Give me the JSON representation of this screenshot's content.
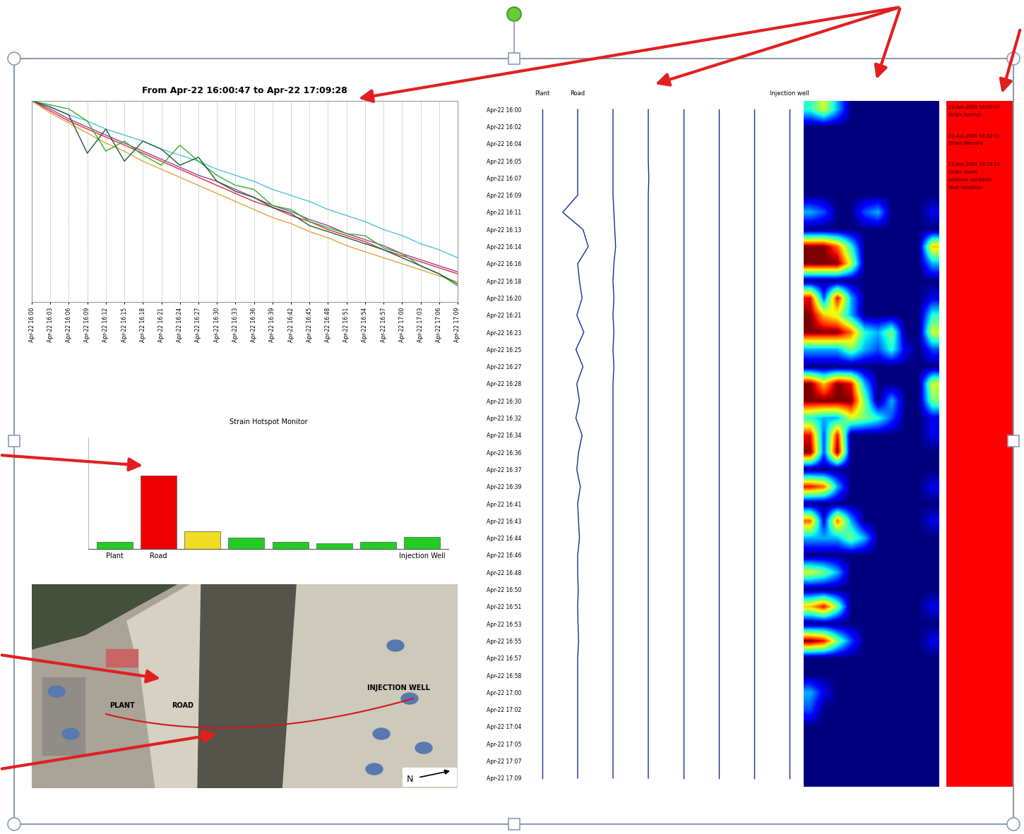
{
  "chart_data": [
    {
      "type": "line",
      "title": "From Apr-22 16:00:47 to Apr-22 17:09:28",
      "x": [
        "Apr-22 16:00",
        "Apr-22 16:03",
        "Apr-22 16:06",
        "Apr-22 16:09",
        "Apr-22 16:12",
        "Apr-22 16:15",
        "Apr-22 16:18",
        "Apr-22 16:21",
        "Apr-22 16:24",
        "Apr-22 16:27",
        "Apr-22 16:30",
        "Apr-22 16:33",
        "Apr-22 16:36",
        "Apr-22 16:39",
        "Apr-22 16:42",
        "Apr-22 16:45",
        "Apr-22 16:48",
        "Apr-22 16:51",
        "Apr-22 16:54",
        "Apr-22 16:57",
        "Apr-22 17:00",
        "Apr-22 17:03",
        "Apr-22 17:06",
        "Apr-22 17:09"
      ],
      "series": [
        {
          "color": "#4fc3d9",
          "values": [
            100,
            97,
            93,
            90,
            86,
            83,
            80,
            76,
            73,
            70,
            66,
            63,
            60,
            56,
            53,
            50,
            46,
            43,
            40,
            36,
            33,
            29,
            26,
            22
          ]
        },
        {
          "color": "#9b3fa0",
          "values": [
            100,
            96,
            91,
            87,
            83,
            79,
            75,
            71,
            67,
            63,
            60,
            56,
            52,
            48,
            45,
            41,
            38,
            34,
            31,
            28,
            24,
            21,
            18,
            15
          ]
        },
        {
          "color": "#e03030",
          "values": [
            100,
            95,
            90,
            86,
            82,
            78,
            74,
            70,
            66,
            62,
            58,
            54,
            50,
            47,
            43,
            40,
            36,
            33,
            30,
            26,
            23,
            20,
            17,
            14
          ]
        },
        {
          "color": "#e8a040",
          "values": [
            100,
            94,
            89,
            84,
            79,
            75,
            70,
            66,
            62,
            58,
            54,
            50,
            46,
            42,
            39,
            35,
            32,
            28,
            25,
            22,
            19,
            16,
            13,
            10
          ]
        },
        {
          "color": "#30b030",
          "values": [
            100,
            98,
            96,
            90,
            75,
            80,
            73,
            68,
            78,
            70,
            63,
            58,
            56,
            48,
            46,
            40,
            37,
            34,
            33,
            27,
            24,
            18,
            14,
            8
          ]
        },
        {
          "color": "#1f5a3a",
          "values": [
            100,
            97,
            93,
            74,
            86,
            70,
            80,
            76,
            68,
            72,
            60,
            55,
            52,
            47,
            44,
            38,
            35,
            32,
            29,
            26,
            22,
            18,
            14,
            9
          ]
        }
      ],
      "ylim": [
        0,
        100
      ],
      "grid": "x",
      "tick_labels": "x"
    },
    {
      "type": "trace",
      "color": "#1a2a9a",
      "y": [
        "Apr-22 16:00",
        "Apr-22 16:02",
        "Apr-22 16:04",
        "Apr-22 16:05",
        "Apr-22 16:07",
        "Apr-22 16:09",
        "Apr-22 16:11",
        "Apr-22 16:13",
        "Apr-22 16:14",
        "Apr-22 16:16",
        "Apr-22 16:18",
        "Apr-22 16:20",
        "Apr-22 16:21",
        "Apr-22 16:23",
        "Apr-22 16:25",
        "Apr-22 16:27",
        "Apr-22 16:28",
        "Apr-22 16:30",
        "Apr-22 16:32",
        "Apr-22 16:34",
        "Apr-22 16:36",
        "Apr-22 16:37",
        "Apr-22 16:39",
        "Apr-22 16:41",
        "Apr-22 16:43",
        "Apr-22 16:44",
        "Apr-22 16:46",
        "Apr-22 16:48",
        "Apr-22 16:50",
        "Apr-22 16:51",
        "Apr-22 16:53",
        "Apr-22 16:55",
        "Apr-22 16:57",
        "Apr-22 16:58",
        "Apr-22 17:00",
        "Apr-22 17:02",
        "Apr-22 17:04",
        "Apr-22 17:05",
        "Apr-22 17:07",
        "Apr-22 17:09"
      ],
      "series": [
        {
          "name": "Plant",
          "values": [
            0,
            0,
            0,
            0,
            0,
            0,
            0,
            0,
            0,
            0,
            0,
            0,
            0,
            0,
            0,
            0,
            0,
            0,
            0,
            0,
            0,
            0,
            0,
            0,
            0,
            0,
            0,
            0,
            0,
            0,
            0,
            0,
            0,
            0,
            0,
            0,
            0,
            0,
            0,
            0
          ]
        },
        {
          "name": "Road",
          "values": [
            0,
            0,
            0,
            0,
            0,
            0,
            -0.85,
            0.3,
            0.6,
            0,
            0.1,
            0.25,
            -0.05,
            0.35,
            -0.1,
            0.3,
            -0.05,
            0.1,
            -0.1,
            0.25,
            0.05,
            -0.05,
            0.15,
            0,
            0.05,
            0.1,
            0,
            0,
            0.03,
            0,
            0.02,
            0.05,
            0,
            0,
            0,
            0,
            0,
            0,
            0,
            0
          ]
        },
        {
          "values": [
            0,
            0,
            0,
            0,
            0,
            0,
            0.05,
            0.1,
            0.15,
            0.05,
            0,
            0.05,
            0,
            0.05,
            0,
            0.05,
            0,
            0,
            0,
            0,
            0,
            0,
            0,
            0,
            0,
            0,
            0,
            0,
            0,
            0,
            0,
            0,
            0,
            0,
            0,
            0,
            0,
            0,
            0,
            0
          ]
        },
        {
          "values": [
            0,
            0,
            0,
            0,
            0.03,
            0,
            0,
            0,
            0,
            0,
            0,
            0,
            0,
            0,
            0,
            0,
            0,
            0,
            0,
            0,
            0,
            0,
            0,
            0,
            0,
            0,
            0,
            0,
            0,
            0,
            0,
            0,
            0,
            0,
            0,
            0,
            0,
            0,
            0,
            0
          ]
        },
        {
          "values": [
            0,
            0,
            0,
            0,
            0,
            0,
            0,
            0,
            0,
            0,
            0,
            0,
            0,
            0,
            0,
            0,
            0,
            0,
            0,
            0,
            0,
            0,
            0,
            0,
            0,
            0,
            0,
            0,
            0,
            0,
            0,
            0,
            0,
            0,
            0,
            0,
            0,
            0,
            0,
            0
          ]
        },
        {
          "values": [
            0,
            0,
            0,
            0,
            0,
            0,
            0,
            0,
            0,
            0,
            0,
            0,
            0,
            0,
            0,
            0,
            0,
            0,
            0,
            0,
            0,
            0,
            0,
            0,
            0,
            0,
            0,
            0,
            0,
            0,
            0,
            0,
            0,
            0,
            0,
            0,
            0,
            0,
            0,
            0
          ]
        },
        {
          "values": [
            0,
            0,
            0,
            0,
            0,
            0,
            0,
            0,
            0,
            0,
            0,
            0,
            0,
            0,
            0,
            0,
            0,
            0,
            0,
            0,
            0,
            0,
            0,
            0,
            0,
            0,
            0,
            0,
            0,
            0,
            0,
            0,
            0,
            0,
            0,
            0,
            0,
            0,
            0,
            0
          ]
        },
        {
          "name": "Injection well",
          "values": [
            0,
            0,
            0,
            0,
            0,
            0,
            0,
            0,
            0,
            0,
            0,
            0,
            0,
            0,
            0,
            0,
            0,
            0,
            0,
            0,
            0,
            0,
            0,
            0,
            0,
            0,
            0,
            0,
            0,
            0,
            0,
            0,
            0,
            0,
            0,
            0,
            0,
            0,
            0,
            0
          ]
        }
      ],
      "xlim": [
        -1,
        1
      ],
      "tick_labels": "y"
    },
    {
      "type": "heatmap",
      "color_range": [
        0,
        1
      ],
      "tick_labels": false,
      "cells": [
        [
          0.4,
          0.6,
          0.3,
          0,
          0,
          0,
          0,
          0,
          0,
          0
        ],
        [
          0,
          0,
          0,
          0,
          0,
          0,
          0,
          0,
          0,
          0
        ],
        [
          0,
          0,
          0,
          0,
          0,
          0,
          0,
          0,
          0,
          0
        ],
        [
          0,
          0,
          0,
          0,
          0,
          0,
          0,
          0,
          0,
          0
        ],
        [
          0,
          0,
          0,
          0,
          0,
          0,
          0,
          0,
          0,
          0
        ],
        [
          0,
          0,
          0,
          0,
          0,
          0,
          0,
          0,
          0,
          0
        ],
        [
          0.3,
          0.2,
          0,
          0,
          0.2,
          0.3,
          0,
          0,
          0,
          0.1
        ],
        [
          0,
          0,
          0,
          0,
          0,
          0,
          0,
          0,
          0,
          0
        ],
        [
          1,
          1,
          0.8,
          0.4,
          0,
          0,
          0,
          0,
          0,
          0.7
        ],
        [
          1,
          1,
          1,
          0.6,
          0,
          0,
          0,
          0,
          0,
          0.3
        ],
        [
          0,
          0,
          0,
          0,
          0,
          0,
          0,
          0,
          0,
          0
        ],
        [
          0.9,
          0.2,
          0.9,
          0.3,
          0,
          0,
          0,
          0,
          0,
          0.1
        ],
        [
          1,
          0.7,
          0.6,
          0.3,
          0,
          0,
          0,
          0,
          0,
          0.4
        ],
        [
          1,
          1,
          1,
          0.8,
          0.4,
          0.3,
          0.5,
          0,
          0,
          0.6
        ],
        [
          0.3,
          0.3,
          0.3,
          0.5,
          0.3,
          0.2,
          0.4,
          0.1,
          0,
          0.2
        ],
        [
          0,
          0,
          0,
          0,
          0,
          0,
          0,
          0,
          0,
          0
        ],
        [
          1,
          0.7,
          1,
          0.9,
          0.3,
          0,
          0,
          0,
          0,
          0.6
        ],
        [
          1,
          1,
          1,
          1,
          0.5,
          0,
          0.3,
          0,
          0,
          0.5
        ],
        [
          0.4,
          0.3,
          0.3,
          0.6,
          0.5,
          0.4,
          0.2,
          0,
          0,
          0.1
        ],
        [
          0.9,
          0.2,
          0.9,
          0,
          0,
          0,
          0,
          0,
          0,
          0.1
        ],
        [
          1,
          0.2,
          1,
          0,
          0,
          0,
          0,
          0,
          0,
          0
        ],
        [
          0,
          0,
          0,
          0,
          0,
          0,
          0,
          0,
          0,
          0
        ],
        [
          0.9,
          0.8,
          0.3,
          0,
          0,
          0,
          0,
          0,
          0,
          0.1
        ],
        [
          0,
          0,
          0,
          0,
          0,
          0,
          0,
          0,
          0,
          0
        ],
        [
          0.8,
          0.1,
          0.8,
          0.3,
          0,
          0,
          0,
          0,
          0,
          0.1
        ],
        [
          0.3,
          0.3,
          0.3,
          0.5,
          0.3,
          0,
          0,
          0,
          0,
          0
        ],
        [
          0,
          0,
          0,
          0,
          0,
          0,
          0,
          0,
          0,
          0
        ],
        [
          0.6,
          0.5,
          0.3,
          0,
          0,
          0,
          0,
          0,
          0,
          0
        ],
        [
          0,
          0,
          0,
          0,
          0,
          0,
          0,
          0,
          0,
          0
        ],
        [
          0.7,
          0.9,
          0.5,
          0,
          0,
          0,
          0,
          0,
          0,
          0.1
        ],
        [
          0,
          0,
          0,
          0,
          0,
          0,
          0,
          0,
          0,
          0
        ],
        [
          1,
          0.9,
          0.5,
          0.2,
          0,
          0,
          0,
          0,
          0,
          0.1
        ],
        [
          0,
          0,
          0,
          0,
          0,
          0,
          0,
          0,
          0,
          0
        ],
        [
          0,
          0,
          0,
          0,
          0,
          0,
          0,
          0,
          0,
          0
        ],
        [
          0.3,
          0.1,
          0,
          0,
          0,
          0,
          0,
          0,
          0,
          0
        ],
        [
          0.2,
          0,
          0,
          0,
          0,
          0,
          0,
          0,
          0,
          0
        ],
        [
          0,
          0,
          0,
          0,
          0,
          0,
          0,
          0,
          0,
          0
        ],
        [
          0,
          0,
          0,
          0,
          0,
          0,
          0,
          0,
          0,
          0
        ],
        [
          0,
          0,
          0,
          0,
          0,
          0,
          0,
          0,
          0,
          0
        ],
        [
          0,
          0,
          0,
          0,
          0,
          0,
          0,
          0,
          0,
          0
        ]
      ]
    },
    {
      "type": "bar",
      "title": "Strain Hotspot Monitor",
      "categories": [
        "Plant",
        "Road",
        null,
        null,
        null,
        null,
        null,
        "Injection Well"
      ],
      "values": [
        10,
        105,
        25,
        16,
        10,
        8,
        10,
        17
      ],
      "colors": [
        "#22cc22",
        "#ee0000",
        "#eedd22",
        "#22cc22",
        "#22cc22",
        "#22cc22",
        "#22cc22",
        "#22cc22"
      ],
      "ylim": [
        0,
        160
      ],
      "tick_labels": "x"
    }
  ],
  "status_panel": {
    "color": "#ff0000",
    "entries": [
      {
        "time": "22-Apr-2009 16:00:47",
        "lines": [
          "Strain Normal"
        ]
      },
      {
        "time": "22-Apr-2009 16:12:06",
        "lines": [
          "Strain Warning"
        ]
      },
      {
        "time": "22-Apr-2009 16:16:23",
        "lines": [
          "Strain Alarm",
          "spillover condition",
          "fault condition"
        ]
      }
    ]
  },
  "map": {
    "plant": "PLANT",
    "road": "ROAD",
    "injection_well": "INJECTION WELL",
    "north": "N"
  }
}
